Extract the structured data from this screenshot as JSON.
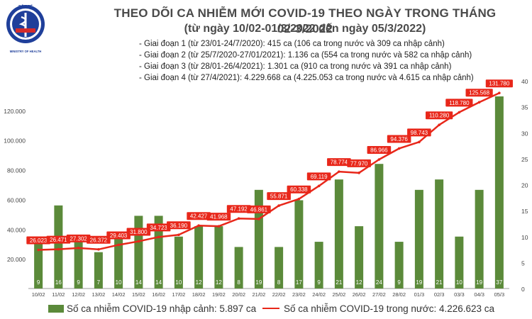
{
  "header": {
    "title": "THEO DÕI CA NHIỄM MỚI COVID-19 THEO NGÀY TRONG THÁNG 02-3/2022",
    "subtitle": "(từ ngày 10/02-01/3/2022 đến ngày 05/3/2022)",
    "logo_text": "BỘ Y TẾ",
    "logo_caption": "MINISTRY OF HEALTH"
  },
  "phases": [
    "- Giai đoạn 1 (từ 23/01-24/7/2020): 415 ca (106 ca trong nước và 309 ca nhập cảnh)",
    "- Giai đoạn 2 (từ 25/7/2020-27/01/2021): 1.136 ca (554 ca trong nước và 582 ca nhập cảnh)",
    "- Giai đoạn 3 (từ 28/01-26/4/2021): 1.301 ca (910 ca trong nước và 391 ca nhập cảnh)",
    "- Giai đoạn 4 (từ 27/4/2021): 4.229.668 ca (4.225.053 ca trong nước và 4.615 ca nhập cảnh)"
  ],
  "legend": {
    "bars": "Số ca nhiễm COVID-19 nhập cảnh: 5.897 ca",
    "line": "Số ca nhiễm COVID-19 trong nước: 4.226.623 ca"
  },
  "colors": {
    "bar": "#5b8a3a",
    "line": "#e8271a",
    "label_box": "#e8271a",
    "title": "#4a4a4a"
  },
  "chart_data": {
    "type": "bar+line",
    "categories": [
      "10/02",
      "11/02",
      "12/02",
      "13/02",
      "14/02",
      "15/02",
      "16/02",
      "17/02",
      "18/02",
      "19/02",
      "20/02",
      "21/02",
      "22/02",
      "23/02",
      "24/02",
      "25/02",
      "26/02",
      "27/02",
      "28/02",
      "01/3",
      "02/3",
      "03/3",
      "04/3",
      "05/3"
    ],
    "series": [
      {
        "name": "Số ca nhiễm COVID-19 nhập cảnh: 5.897 ca",
        "axis": "right",
        "kind": "bar",
        "values": [
          9,
          16,
          9,
          7,
          10,
          14,
          14,
          10,
          12,
          12,
          8,
          19,
          8,
          17,
          9,
          21,
          12,
          24,
          9,
          19,
          21,
          10,
          19,
          37
        ],
        "labels": [
          "9",
          "16",
          "9",
          "7",
          "10",
          "14",
          "14",
          "10",
          "12",
          "12",
          "8",
          "19",
          "8",
          "17",
          "9",
          "21",
          "12",
          "24",
          "9",
          "19",
          "21",
          "10",
          "19",
          "37"
        ]
      },
      {
        "name": "Số ca nhiễm COVID-19 trong nước: 4.226.623 ca",
        "axis": "left",
        "kind": "line",
        "values": [
          26023,
          26471,
          27302,
          26372,
          29403,
          31800,
          34723,
          36190,
          42427,
          41968,
          47192,
          46861,
          55871,
          60338,
          69119,
          78774,
          77970,
          86966,
          94376,
          98743,
          110280,
          118780,
          125568,
          131780
        ],
        "labels": [
          "26.023",
          "26.471",
          "27.302",
          "26.372",
          "29.403",
          "31.800",
          "34.723",
          "36.190",
          "42.427",
          "41.968",
          "47.192",
          "46.861",
          "55.871",
          "60.338",
          "69.119",
          "78.774",
          "77.970",
          "86.966",
          "94.376",
          "98.743",
          "110.280",
          "118.780",
          "125.568",
          "131.780"
        ]
      }
    ],
    "yleft": {
      "ticks": [
        20000,
        40000,
        60000,
        80000,
        100000,
        120000
      ],
      "tick_labels": [
        "20.000",
        "40.000",
        "60.000",
        "80.000",
        "100.000",
        "120.000"
      ],
      "max": 140000
    },
    "yright": {
      "ticks": [
        0,
        5,
        10,
        15,
        20,
        25,
        30,
        35,
        40
      ],
      "tick_labels": [
        "0",
        "5",
        "10",
        "15",
        "20",
        "25",
        "30",
        "35",
        "40"
      ],
      "max": 40
    },
    "grid": false,
    "legend_position": "bottom"
  }
}
